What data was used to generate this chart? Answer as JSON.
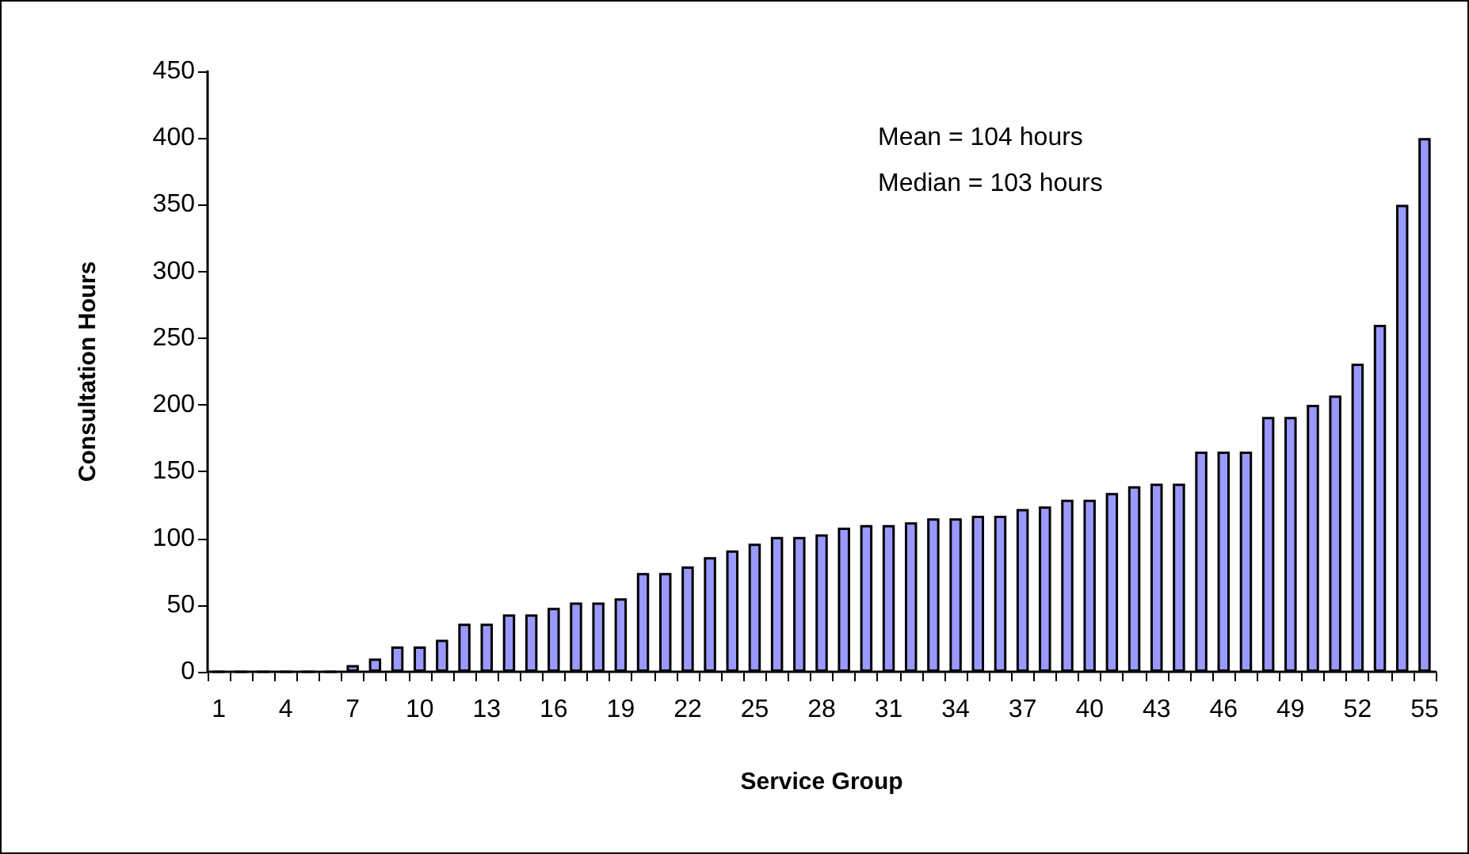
{
  "chart_data": {
    "type": "bar",
    "xlabel": "Service Group",
    "ylabel": "Consultation Hours",
    "categories": [
      "1",
      null,
      null,
      "4",
      null,
      null,
      "7",
      null,
      null,
      "10",
      null,
      null,
      "13",
      null,
      null,
      "16",
      null,
      null,
      "19",
      null,
      null,
      "22",
      null,
      null,
      "25",
      null,
      null,
      "28",
      null,
      null,
      "31",
      null,
      null,
      "34",
      null,
      null,
      "37",
      null,
      null,
      "40",
      null,
      null,
      "43",
      null,
      null,
      "46",
      null,
      null,
      "49",
      null,
      null,
      "52",
      null,
      null,
      "55"
    ],
    "values": [
      0,
      0,
      0,
      0,
      0,
      0,
      5,
      10,
      19,
      19,
      24,
      36,
      36,
      43,
      43,
      48,
      52,
      52,
      55,
      74,
      74,
      79,
      86,
      91,
      96,
      101,
      101,
      103,
      108,
      110,
      110,
      112,
      115,
      115,
      117,
      117,
      122,
      124,
      129,
      129,
      134,
      139,
      141,
      141,
      165,
      165,
      165,
      191,
      191,
      200,
      207,
      231,
      260,
      350,
      400
    ],
    "color": "#9999ff",
    "ylim": [
      0,
      450
    ],
    "yticks": [
      0,
      50,
      100,
      150,
      200,
      250,
      300,
      350,
      400,
      450
    ],
    "grid": false,
    "annotations": [
      "Mean = 104 hours",
      "Median = 103 hours"
    ]
  }
}
